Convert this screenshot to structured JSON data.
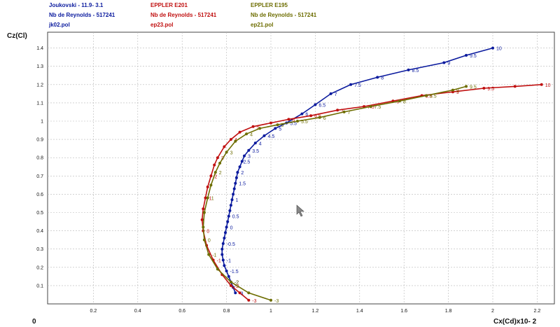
{
  "chart_data": {
    "type": "line",
    "xlabel": "Cx(Cd)x10- 2",
    "ylabel": "Cz(Cl)",
    "origin_label": "0",
    "xlim": [
      0,
      2.25
    ],
    "ylim": [
      0,
      1.55
    ],
    "x_ticks": [
      "0.2",
      "0.4",
      "0.6",
      "0.8",
      "1",
      "1.2",
      "1.4",
      "1.6",
      "1.8",
      "2",
      "2.2"
    ],
    "y_ticks": [
      "0.1",
      "0.2",
      "0.3",
      "0.4",
      "0.5",
      "0.6",
      "0.7",
      "0.8",
      "0.9",
      "1",
      "1.1",
      "1.2",
      "1.3",
      "1.4"
    ],
    "grid": true,
    "legend": [
      {
        "line1": "Joukovski - 11.9- 3.1",
        "line2": "Nb de Reynolds -  517241",
        "line3": "jk02.pol",
        "color": "#0a1a9e"
      },
      {
        "line1": "EPPLER E201",
        "line2": "Nb de Reynolds -  517241",
        "line3": "ep23.pol",
        "color": "#c01010"
      },
      {
        "line1": "EPPLER E195",
        "line2": "Nb de Reynolds -  517241",
        "line3": "ep21.pol",
        "color": "#6d6d00"
      }
    ],
    "series": [
      {
        "name": "jk02.pol",
        "color": "#0a1a9e",
        "points": [
          [
            0.84,
            0.06
          ],
          [
            0.83,
            0.09
          ],
          [
            0.82,
            0.12
          ],
          [
            0.81,
            0.15
          ],
          [
            0.8,
            0.18
          ],
          [
            0.79,
            0.21
          ],
          [
            0.785,
            0.24
          ],
          [
            0.78,
            0.27
          ],
          [
            0.78,
            0.3
          ],
          [
            0.785,
            0.33
          ],
          [
            0.79,
            0.36
          ],
          [
            0.795,
            0.39
          ],
          [
            0.8,
            0.42
          ],
          [
            0.805,
            0.45
          ],
          [
            0.81,
            0.48
          ],
          [
            0.815,
            0.51
          ],
          [
            0.82,
            0.54
          ],
          [
            0.825,
            0.57
          ],
          [
            0.83,
            0.6
          ],
          [
            0.835,
            0.63
          ],
          [
            0.84,
            0.66
          ],
          [
            0.845,
            0.69
          ],
          [
            0.85,
            0.72
          ],
          [
            0.86,
            0.75
          ],
          [
            0.87,
            0.78
          ],
          [
            0.88,
            0.81
          ],
          [
            0.9,
            0.84
          ],
          [
            0.93,
            0.88
          ],
          [
            0.97,
            0.92
          ],
          [
            1.02,
            0.96
          ],
          [
            1.07,
            0.99
          ],
          [
            1.14,
            1.04
          ],
          [
            1.2,
            1.09
          ],
          [
            1.27,
            1.15
          ],
          [
            1.36,
            1.2
          ],
          [
            1.48,
            1.24
          ],
          [
            1.62,
            1.28
          ],
          [
            1.78,
            1.32
          ],
          [
            1.88,
            1.36
          ],
          [
            2.0,
            1.4
          ]
        ],
        "labels": [
          {
            "text": "-3",
            "x": 0.84,
            "y": 0.06
          },
          {
            "text": "-2",
            "x": 0.82,
            "y": 0.12
          },
          {
            "text": "-1.5",
            "x": 0.8,
            "y": 0.18
          },
          {
            "text": "-1",
            "x": 0.785,
            "y": 0.24
          },
          {
            "text": "-0.5",
            "x": 0.785,
            "y": 0.33
          },
          {
            "text": "0",
            "x": 0.8,
            "y": 0.42
          },
          {
            "text": "0.5",
            "x": 0.81,
            "y": 0.48
          },
          {
            "text": "1",
            "x": 0.825,
            "y": 0.57
          },
          {
            "text": "1.5",
            "x": 0.84,
            "y": 0.66
          },
          {
            "text": "2",
            "x": 0.85,
            "y": 0.72
          },
          {
            "text": "2.5",
            "x": 0.86,
            "y": 0.78
          },
          {
            "text": "3",
            "x": 0.88,
            "y": 0.81
          },
          {
            "text": "3.5",
            "x": 0.9,
            "y": 0.84
          },
          {
            "text": "4",
            "x": 0.93,
            "y": 0.88
          },
          {
            "text": "4.5",
            "x": 0.97,
            "y": 0.92
          },
          {
            "text": "5",
            "x": 1.02,
            "y": 0.96
          },
          {
            "text": "5.5",
            "x": 1.07,
            "y": 0.99
          },
          {
            "text": "6",
            "x": 1.14,
            "y": 1.04
          },
          {
            "text": "6.5",
            "x": 1.2,
            "y": 1.09
          },
          {
            "text": "7",
            "x": 1.27,
            "y": 1.15
          },
          {
            "text": "7.5",
            "x": 1.36,
            "y": 1.2
          },
          {
            "text": "8",
            "x": 1.48,
            "y": 1.24
          },
          {
            "text": "8.5",
            "x": 1.62,
            "y": 1.28
          },
          {
            "text": "9",
            "x": 1.78,
            "y": 1.32
          },
          {
            "text": "9.5",
            "x": 1.88,
            "y": 1.36
          },
          {
            "text": "10",
            "x": 2.0,
            "y": 1.4
          }
        ]
      },
      {
        "name": "ep23.pol",
        "color": "#c01010",
        "points": [
          [
            0.9,
            0.02
          ],
          [
            0.86,
            0.06
          ],
          [
            0.82,
            0.1
          ],
          [
            0.78,
            0.16
          ],
          [
            0.74,
            0.24
          ],
          [
            0.71,
            0.32
          ],
          [
            0.695,
            0.4
          ],
          [
            0.69,
            0.46
          ],
          [
            0.695,
            0.52
          ],
          [
            0.705,
            0.58
          ],
          [
            0.715,
            0.64
          ],
          [
            0.73,
            0.7
          ],
          [
            0.745,
            0.76
          ],
          [
            0.76,
            0.8
          ],
          [
            0.79,
            0.86
          ],
          [
            0.82,
            0.9
          ],
          [
            0.86,
            0.94
          ],
          [
            0.92,
            0.97
          ],
          [
            1.0,
            0.99
          ],
          [
            1.08,
            1.01
          ],
          [
            1.18,
            1.03
          ],
          [
            1.3,
            1.06
          ],
          [
            1.42,
            1.08
          ],
          [
            1.55,
            1.11
          ],
          [
            1.68,
            1.14
          ],
          [
            1.82,
            1.16
          ],
          [
            1.96,
            1.18
          ],
          [
            2.1,
            1.19
          ],
          [
            2.22,
            1.2
          ]
        ],
        "labels": [
          {
            "text": "-3",
            "x": 0.9,
            "y": 0.02
          },
          {
            "text": "-2",
            "x": 0.82,
            "y": 0.1
          },
          {
            "text": "-1",
            "x": 0.74,
            "y": 0.24
          },
          {
            "text": "0",
            "x": 0.695,
            "y": 0.4
          },
          {
            "text": "1",
            "x": 0.705,
            "y": 0.58
          },
          {
            "text": "2",
            "x": 0.73,
            "y": 0.7
          },
          {
            "text": "3",
            "x": 0.76,
            "y": 0.8
          },
          {
            "text": "4",
            "x": 0.82,
            "y": 0.9
          },
          {
            "text": "5",
            "x": 0.92,
            "y": 0.97
          },
          {
            "text": "6",
            "x": 1.08,
            "y": 1.01
          },
          {
            "text": "6.5",
            "x": 1.18,
            "y": 1.03
          },
          {
            "text": "7",
            "x": 1.3,
            "y": 1.06
          },
          {
            "text": "7.5",
            "x": 1.42,
            "y": 1.08
          },
          {
            "text": "8",
            "x": 1.55,
            "y": 1.11
          },
          {
            "text": "8.5",
            "x": 1.68,
            "y": 1.14
          },
          {
            "text": "9",
            "x": 1.82,
            "y": 1.16
          },
          {
            "text": "9.5",
            "x": 1.96,
            "y": 1.18
          },
          {
            "text": "10",
            "x": 2.22,
            "y": 1.2
          }
        ]
      },
      {
        "name": "ep21.pol",
        "color": "#6d6d00",
        "points": [
          [
            1.0,
            0.02
          ],
          [
            0.9,
            0.06
          ],
          [
            0.82,
            0.12
          ],
          [
            0.76,
            0.19
          ],
          [
            0.72,
            0.27
          ],
          [
            0.7,
            0.35
          ],
          [
            0.695,
            0.42
          ],
          [
            0.7,
            0.5
          ],
          [
            0.715,
            0.58
          ],
          [
            0.73,
            0.65
          ],
          [
            0.75,
            0.72
          ],
          [
            0.77,
            0.77
          ],
          [
            0.8,
            0.83
          ],
          [
            0.84,
            0.89
          ],
          [
            0.89,
            0.93
          ],
          [
            0.95,
            0.96
          ],
          [
            1.03,
            0.98
          ],
          [
            1.12,
            1.0
          ],
          [
            1.22,
            1.02
          ],
          [
            1.33,
            1.05
          ],
          [
            1.45,
            1.08
          ],
          [
            1.58,
            1.11
          ],
          [
            1.7,
            1.14
          ],
          [
            1.82,
            1.17
          ],
          [
            1.88,
            1.19
          ]
        ],
        "labels": [
          {
            "text": "-3",
            "x": 1.0,
            "y": 0.02
          },
          {
            "text": "-2",
            "x": 0.82,
            "y": 0.12
          },
          {
            "text": "-1",
            "x": 0.72,
            "y": 0.27
          },
          {
            "text": "0",
            "x": 0.7,
            "y": 0.35
          },
          {
            "text": "1",
            "x": 0.715,
            "y": 0.58
          },
          {
            "text": "2",
            "x": 0.75,
            "y": 0.72
          },
          {
            "text": "3",
            "x": 0.8,
            "y": 0.83
          },
          {
            "text": "4",
            "x": 0.89,
            "y": 0.93
          },
          {
            "text": "5",
            "x": 1.03,
            "y": 0.98
          },
          {
            "text": "5.5",
            "x": 1.12,
            "y": 1.0
          },
          {
            "text": "6",
            "x": 1.22,
            "y": 1.02
          },
          {
            "text": "7",
            "x": 1.33,
            "y": 1.05
          },
          {
            "text": "7.5",
            "x": 1.45,
            "y": 1.08
          },
          {
            "text": "8",
            "x": 1.58,
            "y": 1.11
          },
          {
            "text": "8.5",
            "x": 1.7,
            "y": 1.14
          },
          {
            "text": "9",
            "x": 1.82,
            "y": 1.17
          },
          {
            "text": "9.5",
            "x": 1.88,
            "y": 1.19
          }
        ]
      }
    ]
  }
}
